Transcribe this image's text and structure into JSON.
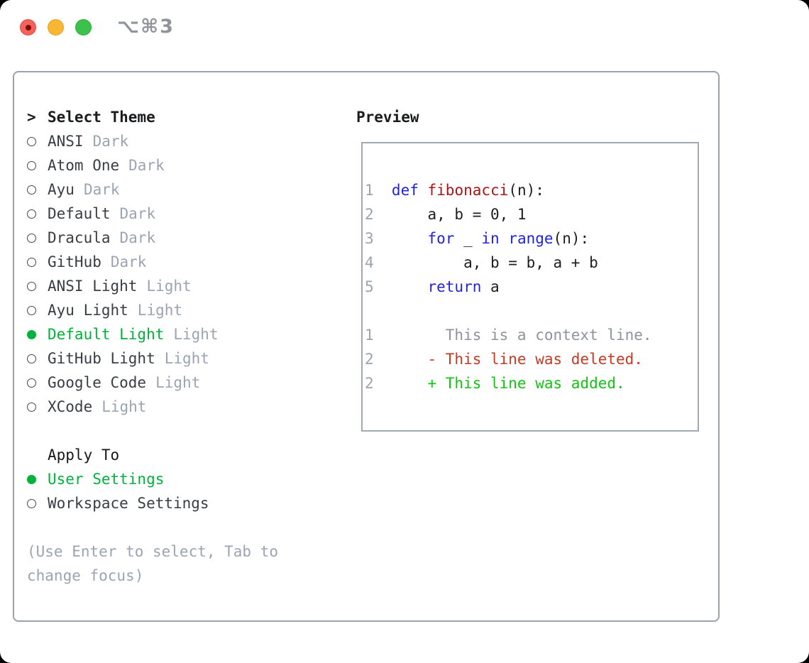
{
  "titlebar": {
    "title": "⌥⌘3"
  },
  "theme_picker": {
    "header_prefix": ">",
    "header": "Select Theme",
    "items": [
      {
        "name": "ANSI",
        "tag": "Dark",
        "selected": false
      },
      {
        "name": "Atom One",
        "tag": "Dark",
        "selected": false
      },
      {
        "name": "Ayu",
        "tag": "Dark",
        "selected": false
      },
      {
        "name": "Default",
        "tag": "Dark",
        "selected": false
      },
      {
        "name": "Dracula",
        "tag": "Dark",
        "selected": false
      },
      {
        "name": "GitHub",
        "tag": "Dark",
        "selected": false
      },
      {
        "name": "ANSI Light",
        "tag": "Light",
        "selected": false
      },
      {
        "name": "Ayu Light",
        "tag": "Light",
        "selected": false
      },
      {
        "name": "Default Light",
        "tag": "Light",
        "selected": true
      },
      {
        "name": "GitHub Light",
        "tag": "Light",
        "selected": false
      },
      {
        "name": "Google Code",
        "tag": "Light",
        "selected": false
      },
      {
        "name": "XCode",
        "tag": "Light",
        "selected": false
      }
    ]
  },
  "apply_to": {
    "header": "Apply To",
    "options": [
      {
        "label": "User Settings",
        "selected": true
      },
      {
        "label": "Workspace Settings",
        "selected": false
      }
    ]
  },
  "hint": {
    "line1": "(Use Enter to select, Tab to",
    "line2": "change focus)"
  },
  "preview": {
    "header": "Preview",
    "code_lines": [
      {
        "num": "1",
        "segments": [
          {
            "t": "def",
            "c": "kw"
          },
          {
            "t": " ",
            "c": "plain"
          },
          {
            "t": "fibonacci",
            "c": "fn"
          },
          {
            "t": "(n):",
            "c": "plain"
          }
        ]
      },
      {
        "num": "2",
        "segments": [
          {
            "t": "    a, b = 0, 1",
            "c": "plain"
          }
        ]
      },
      {
        "num": "3",
        "segments": [
          {
            "t": "    ",
            "c": "plain"
          },
          {
            "t": "for",
            "c": "kw"
          },
          {
            "t": " _ ",
            "c": "plain"
          },
          {
            "t": "in",
            "c": "kw"
          },
          {
            "t": " ",
            "c": "plain"
          },
          {
            "t": "range",
            "c": "kw"
          },
          {
            "t": "(n):",
            "c": "plain"
          }
        ]
      },
      {
        "num": "4",
        "segments": [
          {
            "t": "        a, b = b, a + b",
            "c": "plain"
          }
        ]
      },
      {
        "num": "5",
        "segments": [
          {
            "t": "    ",
            "c": "plain"
          },
          {
            "t": "return",
            "c": "kw"
          },
          {
            "t": " a",
            "c": "plain"
          }
        ]
      }
    ],
    "diff_lines": [
      {
        "num": "1",
        "text": "      This is a context line.",
        "c": "ctx"
      },
      {
        "num": "2",
        "text": "    - This line was deleted.",
        "c": "del"
      },
      {
        "num": "2",
        "text": "    + This line was added.",
        "c": "add"
      }
    ]
  },
  "colors": {
    "accent_green": "#00b23c",
    "added_green": "#13c313",
    "deleted_red": "#c43a22",
    "keyword_blue": "#2222e2",
    "function_red": "#aa1515",
    "muted_gray": "#9ba4b2",
    "panel_border": "#9aa2ae"
  }
}
